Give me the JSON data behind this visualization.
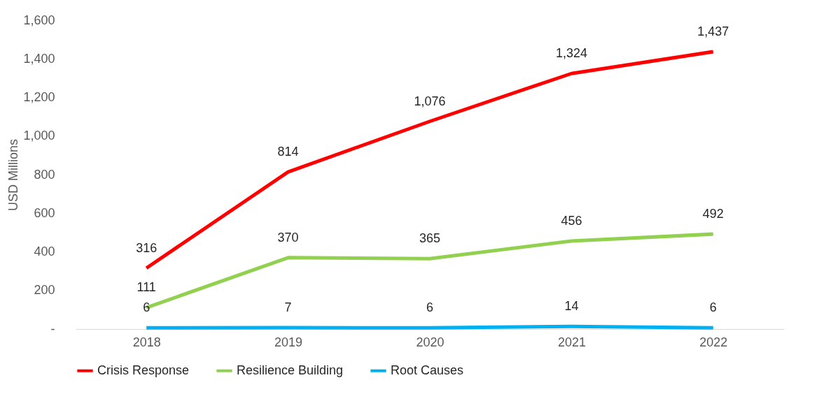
{
  "chart_data": {
    "type": "line",
    "ylabel": "USD Millions",
    "categories": [
      "2018",
      "2019",
      "2020",
      "2021",
      "2022"
    ],
    "series": [
      {
        "name": "Crisis Response",
        "color": "#ff0000",
        "values": [
          316,
          814,
          1076,
          1324,
          1437
        ],
        "value_labels": [
          "316",
          "814",
          "1,076",
          "1,324",
          "1,437"
        ]
      },
      {
        "name": "Resilience Building",
        "color": "#92d050",
        "values": [
          111,
          370,
          365,
          456,
          492
        ],
        "value_labels": [
          "111",
          "370",
          "365",
          "456",
          "492"
        ]
      },
      {
        "name": "Root Causes",
        "color": "#00b0f0",
        "values": [
          6,
          7,
          6,
          14,
          6
        ],
        "value_labels": [
          "6",
          "7",
          "6",
          "14",
          "6"
        ]
      }
    ],
    "ylim": [
      0,
      1600
    ],
    "yticks": [
      {
        "value": 0,
        "label": "-"
      },
      {
        "value": 200,
        "label": "200"
      },
      {
        "value": 400,
        "label": "400"
      },
      {
        "value": 600,
        "label": "600"
      },
      {
        "value": 800,
        "label": "800"
      },
      {
        "value": 1000,
        "label": "1,000"
      },
      {
        "value": 1200,
        "label": "1,200"
      },
      {
        "value": 1400,
        "label": "1,400"
      },
      {
        "value": 1600,
        "label": "1,600"
      }
    ],
    "grid": false,
    "legend": "bottom",
    "marker": "none",
    "line_style": "solid"
  }
}
